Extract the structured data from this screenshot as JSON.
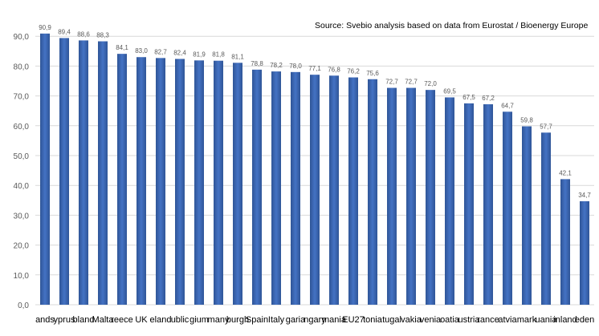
{
  "source_note": "Source: Svebio analysis based on data from Eurostat / Bioenergy Europe",
  "colors": {
    "bar": "#4472c4",
    "bar_dark": "#2f5597",
    "grid": "#d9d9d9",
    "axis_text": "#595959"
  },
  "chart_data": {
    "type": "bar",
    "title": "",
    "xlabel": "",
    "ylabel": "",
    "ylim": [
      0,
      100
    ],
    "yticks": [
      "0,0",
      "10,0",
      "20,0",
      "30,0",
      "40,0",
      "50,0",
      "60,0",
      "70,0",
      "80,0",
      "90,0"
    ],
    "grid": true,
    "categories": [
      "ands",
      "yprus",
      "bland",
      "Malta",
      "reece",
      "UK",
      "eland",
      "ublic",
      "gium",
      "many",
      "burgh",
      "Spain",
      "Italy",
      "garia",
      "ngary",
      "mania",
      "EU27",
      "tonia",
      "tugal",
      "vakia",
      "venia",
      "oatia",
      "ustria",
      "rance",
      "atvia",
      "mark",
      "uania",
      "inland",
      "eden"
    ],
    "values": [
      90.9,
      89.4,
      88.6,
      88.3,
      84.1,
      83.0,
      82.7,
      82.4,
      81.9,
      81.8,
      81.1,
      78.8,
      78.2,
      78.0,
      77.1,
      76.8,
      76.2,
      75.6,
      72.7,
      72.7,
      72.0,
      69.5,
      67.5,
      67.2,
      64.7,
      59.8,
      57.7,
      42.1,
      34.7
    ],
    "value_labels": [
      "90,9",
      "89,4",
      "88,6",
      "88,3",
      "84,1",
      "83,0",
      "82,7",
      "82,4",
      "81,9",
      "81,8",
      "81,1",
      "78,8",
      "78,2",
      "78,0",
      "77,1",
      "76,8",
      "76,2",
      "75,6",
      "72,7",
      "72,7",
      "72,0",
      "69,5",
      "67,5",
      "67,2",
      "64,7",
      "59,8",
      "57,7",
      "42,1",
      "34,7"
    ]
  }
}
